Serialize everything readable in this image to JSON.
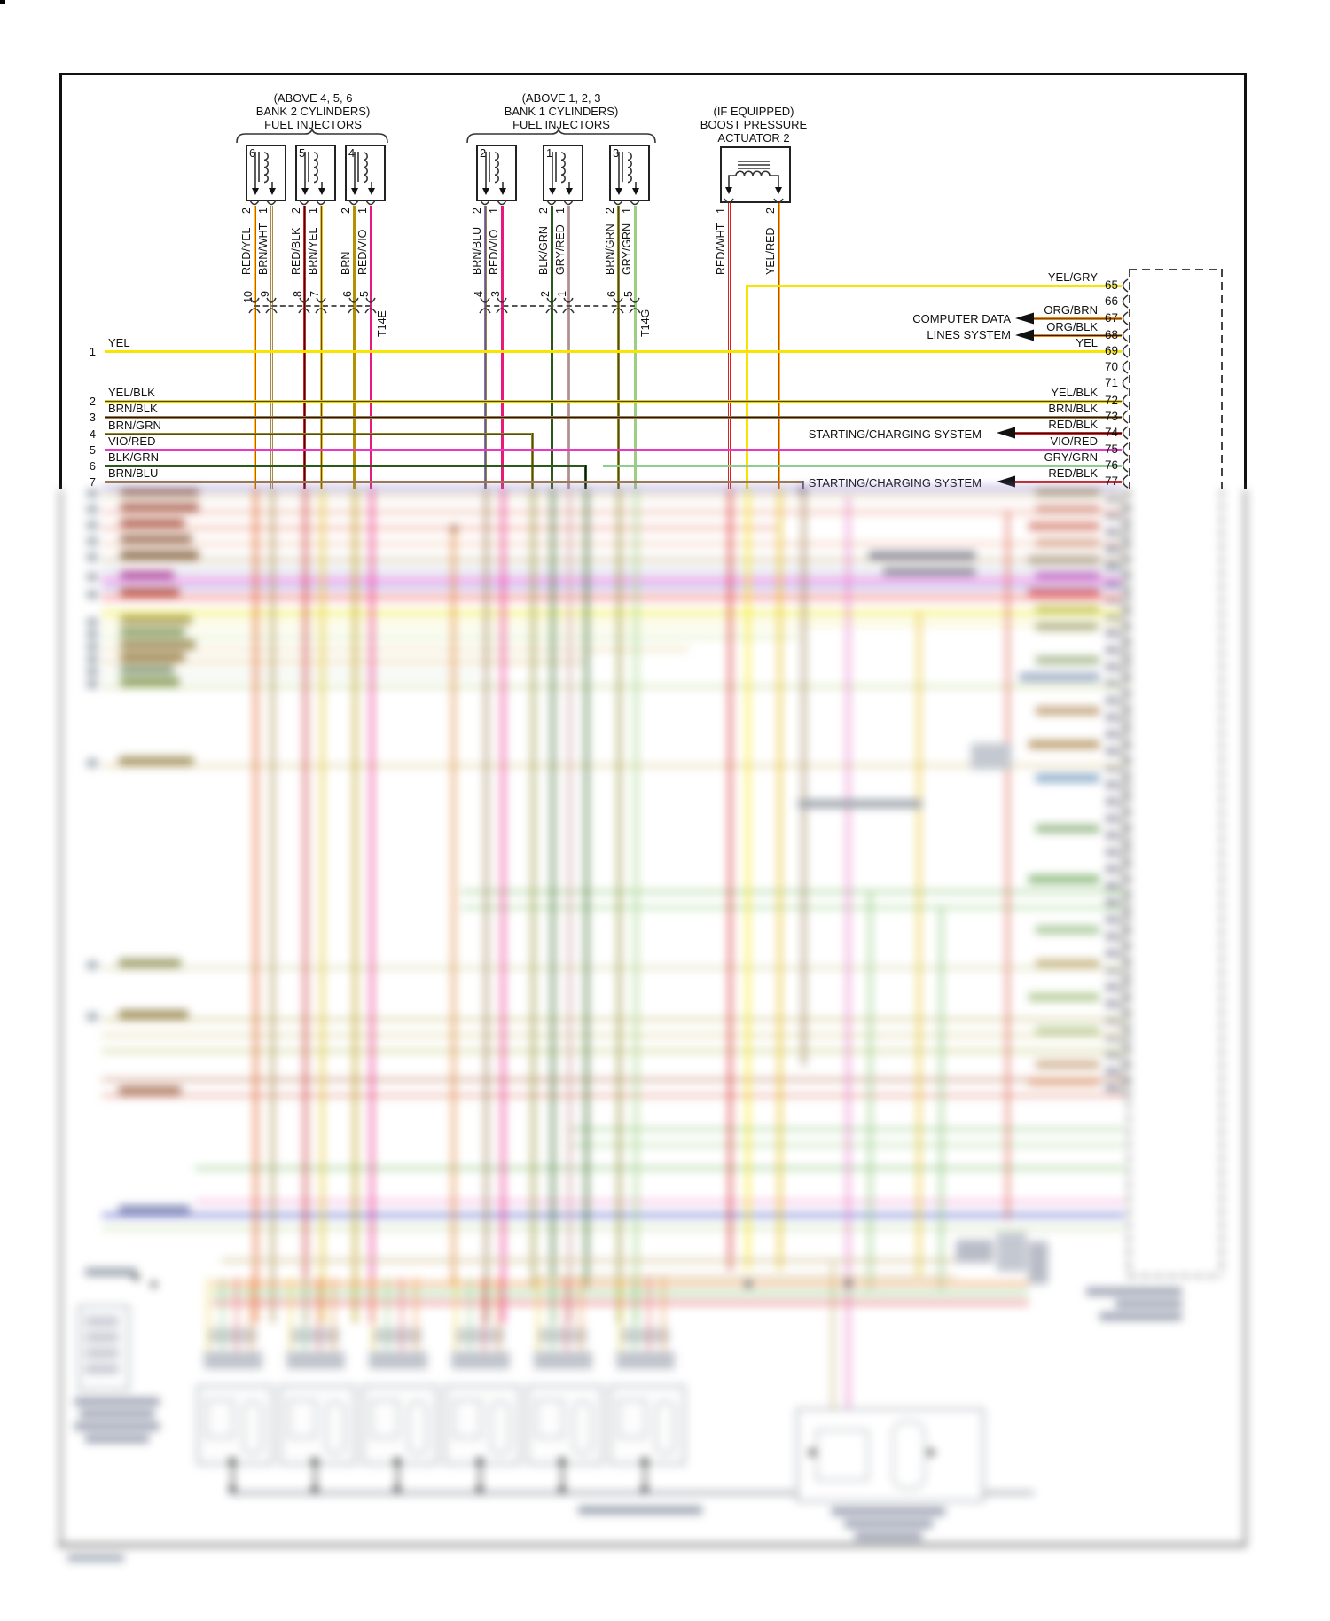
{
  "diagram": {
    "groups": {
      "bank2": {
        "label_lines": [
          "(ABOVE 4, 5, 6",
          "BANK 2 CYLINDERS)",
          "FUEL INJECTORS"
        ],
        "connector": "T14E",
        "injectors": [
          {
            "num": "6",
            "wires": [
              {
                "label": "RED/YEL",
                "pin": "2",
                "terminal": "10"
              },
              {
                "label": "BRN/WHT",
                "pin": "1",
                "terminal": "9"
              }
            ]
          },
          {
            "num": "5",
            "wires": [
              {
                "label": "RED/BLK",
                "pin": "2",
                "terminal": "8"
              },
              {
                "label": "BRN/YEL",
                "pin": "1",
                "terminal": "7"
              }
            ]
          },
          {
            "num": "4",
            "wires": [
              {
                "label": "BRN",
                "pin": "2",
                "terminal": "6"
              },
              {
                "label": "RED/VIO",
                "pin": "1",
                "terminal": "5"
              }
            ]
          }
        ]
      },
      "bank1": {
        "label_lines": [
          "(ABOVE 1, 2, 3",
          "BANK 1 CYLINDERS)",
          "FUEL INJECTORS"
        ],
        "connector": "T14G",
        "injectors": [
          {
            "num": "2",
            "wires": [
              {
                "label": "BRN/BLU",
                "pin": "2",
                "terminal": "4"
              },
              {
                "label": "RED/VIO",
                "pin": "1",
                "terminal": "3"
              }
            ]
          },
          {
            "num": "1",
            "wires": [
              {
                "label": "BLK/GRN",
                "pin": "2",
                "terminal": "2"
              },
              {
                "label": "GRY/RED",
                "pin": "1",
                "terminal": "1"
              }
            ]
          },
          {
            "num": "3",
            "wires": [
              {
                "label": "BRN/GRN",
                "pin": "2",
                "terminal": "6"
              },
              {
                "label": "GRY/GRN",
                "pin": "1",
                "terminal": "5"
              }
            ]
          }
        ]
      },
      "boost": {
        "label_lines": [
          "(IF EQUIPPED)",
          "BOOST PRESSURE",
          "ACTUATOR 2"
        ],
        "wires": [
          {
            "label": "RED/WHT",
            "pin": "1"
          },
          {
            "label": "YEL/RED",
            "pin": "2"
          }
        ]
      }
    },
    "left_rows": [
      {
        "num": "1",
        "label": "YEL"
      },
      {
        "num": "2",
        "label": "YEL/BLK"
      },
      {
        "num": "3",
        "label": "BRN/BLK"
      },
      {
        "num": "4",
        "label": "BRN/GRN"
      },
      {
        "num": "5",
        "label": "VIO/RED"
      },
      {
        "num": "6",
        "label": "BLK/GRN"
      },
      {
        "num": "7",
        "label": "BRN/BLU"
      }
    ],
    "right_pins": [
      {
        "num": "65",
        "label": "YEL/GRY"
      },
      {
        "num": "66",
        "label": ""
      },
      {
        "num": "67",
        "label": "ORG/BRN"
      },
      {
        "num": "68",
        "label": "ORG/BLK"
      },
      {
        "num": "69",
        "label": "YEL"
      },
      {
        "num": "70",
        "label": ""
      },
      {
        "num": "71",
        "label": ""
      },
      {
        "num": "72",
        "label": "YEL/BLK"
      },
      {
        "num": "73",
        "label": "BRN/BLK"
      },
      {
        "num": "74",
        "label": "RED/BLK"
      },
      {
        "num": "75",
        "label": "VIO/RED"
      },
      {
        "num": "76",
        "label": "GRY/GRN"
      },
      {
        "num": "77",
        "label": "RED/BLK"
      }
    ],
    "annotations": {
      "computer_data": [
        "COMPUTER DATA",
        "LINES SYSTEM"
      ],
      "starting_charging": "STARTING/CHARGING SYSTEM"
    },
    "wire_colors": {
      "YEL": "#f7e400",
      "YEL/GRY": "#f7e400",
      "ORG/BRN": "#dd8822",
      "ORG/BLK": "#dd8822",
      "YEL/BLK": "#e6cf00",
      "BRN/BLK": "#9a7a4a",
      "RED/BLK": "#c82828",
      "VIO/RED": "#e838c8",
      "GRY/GRN": "#8fcc8f",
      "BRN/BLU": "#9a7a50",
      "RED/YEL": "#e05010",
      "BRN/WHT": "#a78a4a",
      "BRN/YEL": "#e0c020",
      "BRN": "#b29200",
      "RED/VIO": "#e8187c",
      "BLK/GRN": "#2a5a1a",
      "GRY/RED": "#c89898",
      "BRN/GRN": "#8a8a2a",
      "RED/WHT": "#d82020",
      "YEL/RED": "#e8b800"
    }
  }
}
